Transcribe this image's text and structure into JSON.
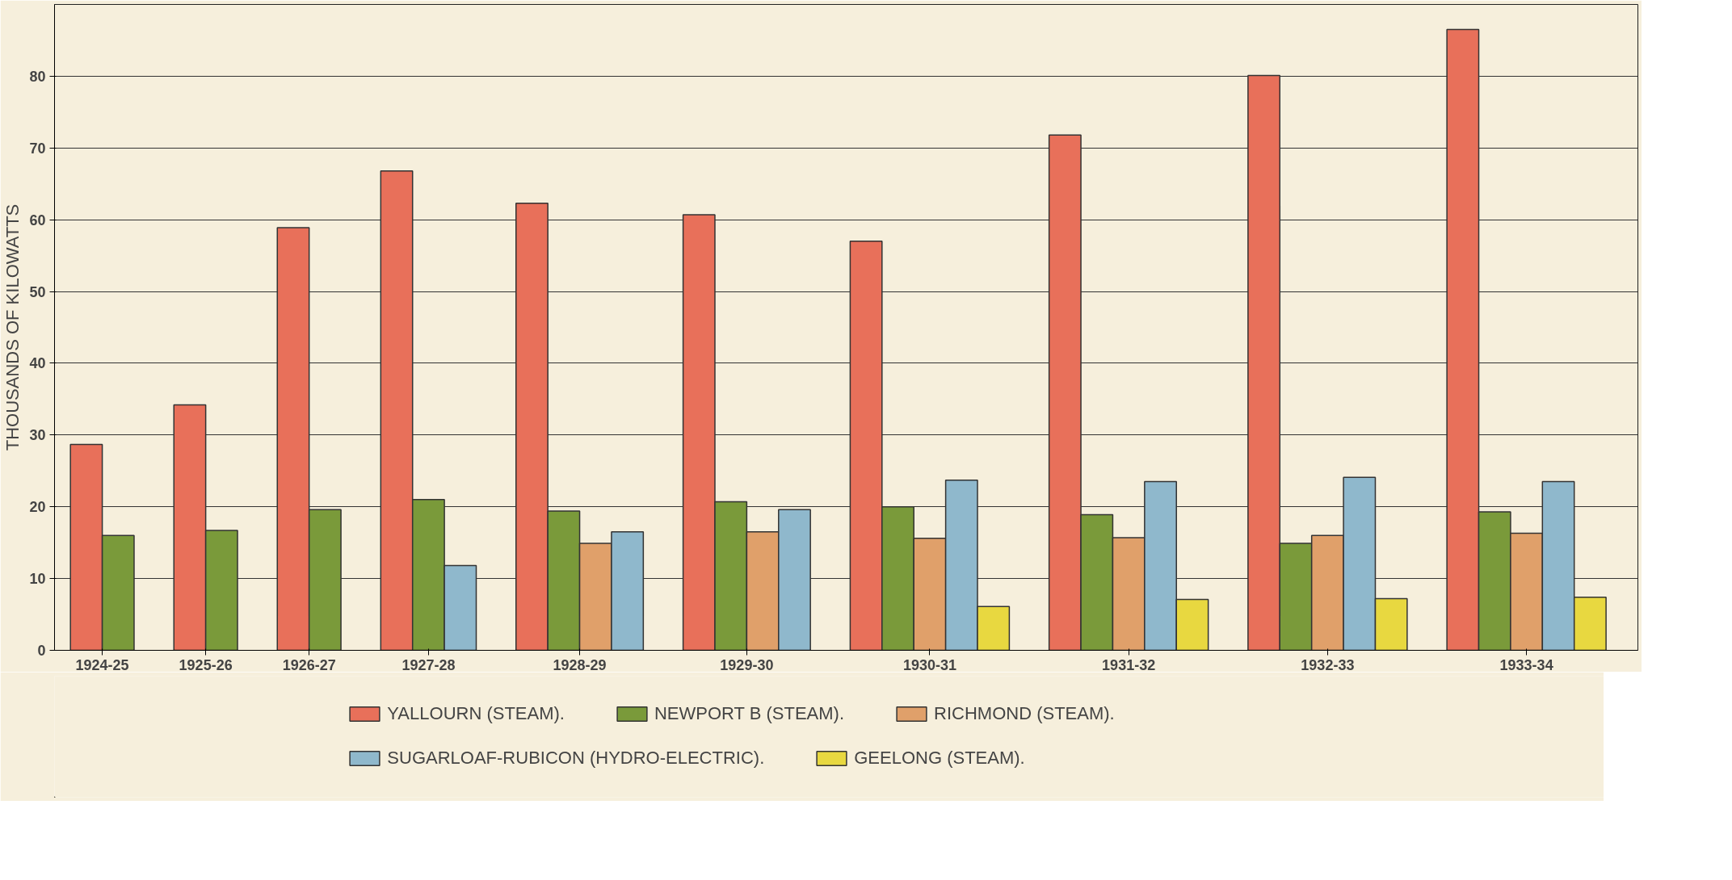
{
  "chart_data": {
    "type": "bar",
    "ylabel": "THOUSANDS OF KILOWATTS",
    "categories": [
      "1924-25",
      "1925-26",
      "1926-27",
      "1927-28",
      "1928-29",
      "1929-30",
      "1930-31",
      "1931-32",
      "1932-33",
      "1933-34"
    ],
    "series": [
      {
        "name": "YALLOURN (STEAM).",
        "color": "#e8705a",
        "values": [
          28.7,
          34.2,
          58.9,
          66.8,
          62.3,
          60.7,
          57.0,
          71.8,
          80.1,
          86.5
        ]
      },
      {
        "name": "NEWPORT B (STEAM).",
        "color": "#7a9a3a",
        "values": [
          16.0,
          16.7,
          19.6,
          21.0,
          19.4,
          20.7,
          20.0,
          18.9,
          14.9,
          19.3
        ]
      },
      {
        "name": "RICHMOND (STEAM).",
        "color": "#e0a06a",
        "values": [
          null,
          null,
          null,
          null,
          14.9,
          16.5,
          15.6,
          15.7,
          16.0,
          16.3
        ]
      },
      {
        "name": "SUGARLOAF-RUBICON (HYDRO-ELECTRIC).",
        "color": "#8fb8cc",
        "values": [
          null,
          null,
          null,
          11.8,
          16.5,
          19.6,
          23.7,
          23.5,
          24.1,
          23.5
        ]
      },
      {
        "name": "GEELONG (STEAM).",
        "color": "#e8d840",
        "values": [
          null,
          null,
          null,
          null,
          null,
          null,
          6.1,
          7.1,
          7.2,
          7.4
        ]
      }
    ],
    "ylim": [
      0,
      90
    ],
    "yticks": [
      0,
      10,
      20,
      30,
      40,
      50,
      60,
      70,
      80
    ],
    "grid": "y",
    "legend": "bottom"
  }
}
